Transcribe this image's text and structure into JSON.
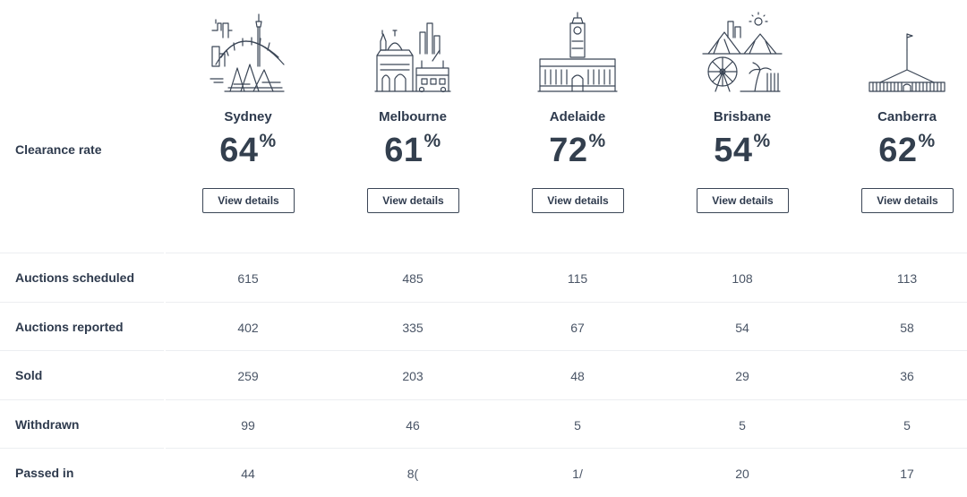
{
  "header": {
    "clearance_label": "Clearance rate",
    "percent_symbol": "%",
    "cities": [
      {
        "name": "Sydney",
        "rate": "64",
        "button": "View details",
        "icon": "sydney-skyline-icon"
      },
      {
        "name": "Melbourne",
        "rate": "61",
        "button": "View details",
        "icon": "melbourne-skyline-icon"
      },
      {
        "name": "Adelaide",
        "rate": "72",
        "button": "View details",
        "icon": "adelaide-skyline-icon"
      },
      {
        "name": "Brisbane",
        "rate": "54",
        "button": "View details",
        "icon": "brisbane-skyline-icon"
      },
      {
        "name": "Canberra",
        "rate": "62",
        "button": "View details",
        "icon": "canberra-parliament-icon"
      }
    ]
  },
  "rows": [
    {
      "label": "Auctions scheduled",
      "values": [
        "615",
        "485",
        "115",
        "108",
        "113"
      ]
    },
    {
      "label": "Auctions reported",
      "values": [
        "402",
        "335",
        "67",
        "54",
        "58"
      ]
    },
    {
      "label": "Sold",
      "values": [
        "259",
        "203",
        "48",
        "29",
        "36"
      ]
    },
    {
      "label": "Withdrawn",
      "values": [
        "99",
        "46",
        "5",
        "5",
        "5"
      ]
    },
    {
      "label": "Passed in",
      "values": [
        "44",
        "8(",
        "1/",
        "20",
        "17"
      ]
    }
  ],
  "colors": {
    "text_dark": "#2e3a4d",
    "text_value": "#4a5566",
    "divider": "#eceef1",
    "button_border": "#3b4656"
  }
}
